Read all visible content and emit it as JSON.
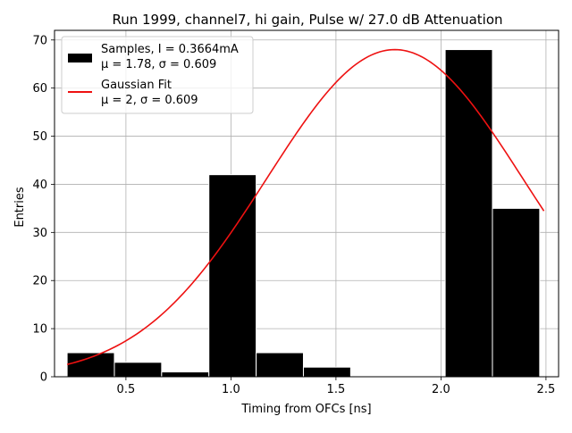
{
  "chart_data": {
    "type": "bar",
    "title": "Run 1999, channel7, hi gain, Pulse w/ 27.0 dB Attenuation",
    "xlabel": "Timing from OFCs [ns]",
    "ylabel": "Entries",
    "xlim": [
      0.16,
      2.56
    ],
    "ylim": [
      0,
      72
    ],
    "xticks": [
      {
        "value": 0.5,
        "label": "0.5"
      },
      {
        "value": 1.0,
        "label": "1.0"
      },
      {
        "value": 1.5,
        "label": "1.5"
      },
      {
        "value": 2.0,
        "label": "2.0"
      },
      {
        "value": 2.5,
        "label": "2.5"
      }
    ],
    "yticks": [
      {
        "value": 0,
        "label": "0"
      },
      {
        "value": 10,
        "label": "10"
      },
      {
        "value": 20,
        "label": "20"
      },
      {
        "value": 30,
        "label": "30"
      },
      {
        "value": 40,
        "label": "40"
      },
      {
        "value": 50,
        "label": "50"
      },
      {
        "value": 60,
        "label": "60"
      },
      {
        "value": 70,
        "label": "70"
      }
    ],
    "grid": true,
    "legend_position": "top-left",
    "histogram": {
      "name": "Samples, I = 0.3664mA",
      "stats": "μ = 1.78, σ = 0.609",
      "color": "#000000",
      "bins": [
        {
          "x0": 0.22,
          "x1": 0.445,
          "count": 5
        },
        {
          "x0": 0.445,
          "x1": 0.67,
          "count": 3
        },
        {
          "x0": 0.67,
          "x1": 0.895,
          "count": 1
        },
        {
          "x0": 0.895,
          "x1": 1.12,
          "count": 42
        },
        {
          "x0": 1.12,
          "x1": 1.345,
          "count": 5
        },
        {
          "x0": 1.345,
          "x1": 1.57,
          "count": 2
        },
        {
          "x0": 2.02,
          "x1": 2.245,
          "count": 68
        },
        {
          "x0": 2.245,
          "x1": 2.47,
          "count": 35
        }
      ]
    },
    "fit": {
      "name": "Gaussian Fit",
      "stats": "μ = 2, σ = 0.609",
      "color": "#ee1111",
      "amplitude": 68,
      "mean": 1.78,
      "sigma": 0.609,
      "x_range": [
        0.22,
        2.49
      ]
    }
  }
}
